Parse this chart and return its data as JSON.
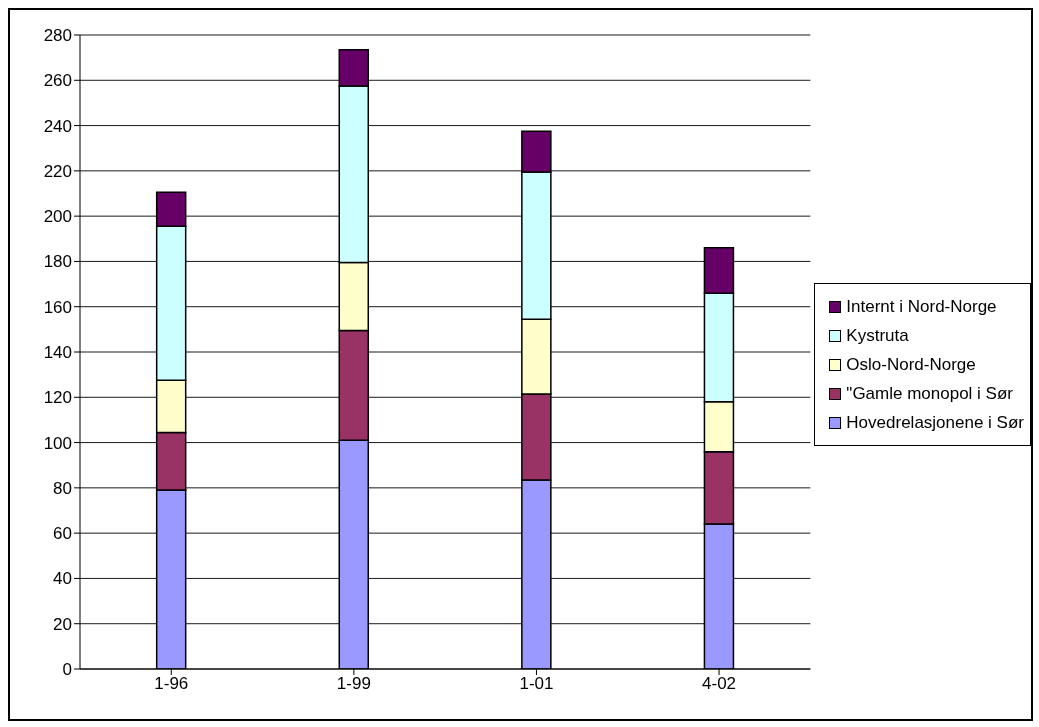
{
  "chart_data": {
    "type": "bar",
    "stacked": true,
    "categories": [
      "1-96",
      "1-99",
      "1-01",
      "4-02"
    ],
    "series": [
      {
        "name": "Hovedrelasjonene i Sør",
        "color": "#9999ff",
        "values": [
          79,
          101,
          83.5,
          64
        ]
      },
      {
        "name": "\"Gamle monopol i Sør",
        "color": "#993366",
        "values": [
          25.5,
          48.5,
          38,
          32
        ]
      },
      {
        "name": "Oslo-Nord-Norge",
        "color": "#ffffcc",
        "values": [
          23,
          30,
          33,
          22
        ]
      },
      {
        "name": "Kystruta",
        "color": "#ccffff",
        "values": [
          68,
          78,
          65,
          48
        ]
      },
      {
        "name": "Internt i Nord-Norge",
        "color": "#660066",
        "values": [
          15,
          16,
          18,
          20
        ]
      }
    ],
    "ylim": [
      0,
      280
    ],
    "yticks": [
      0,
      20,
      40,
      60,
      80,
      100,
      120,
      140,
      160,
      180,
      200,
      220,
      240,
      260,
      280
    ],
    "grid": "y",
    "legend": "right"
  }
}
